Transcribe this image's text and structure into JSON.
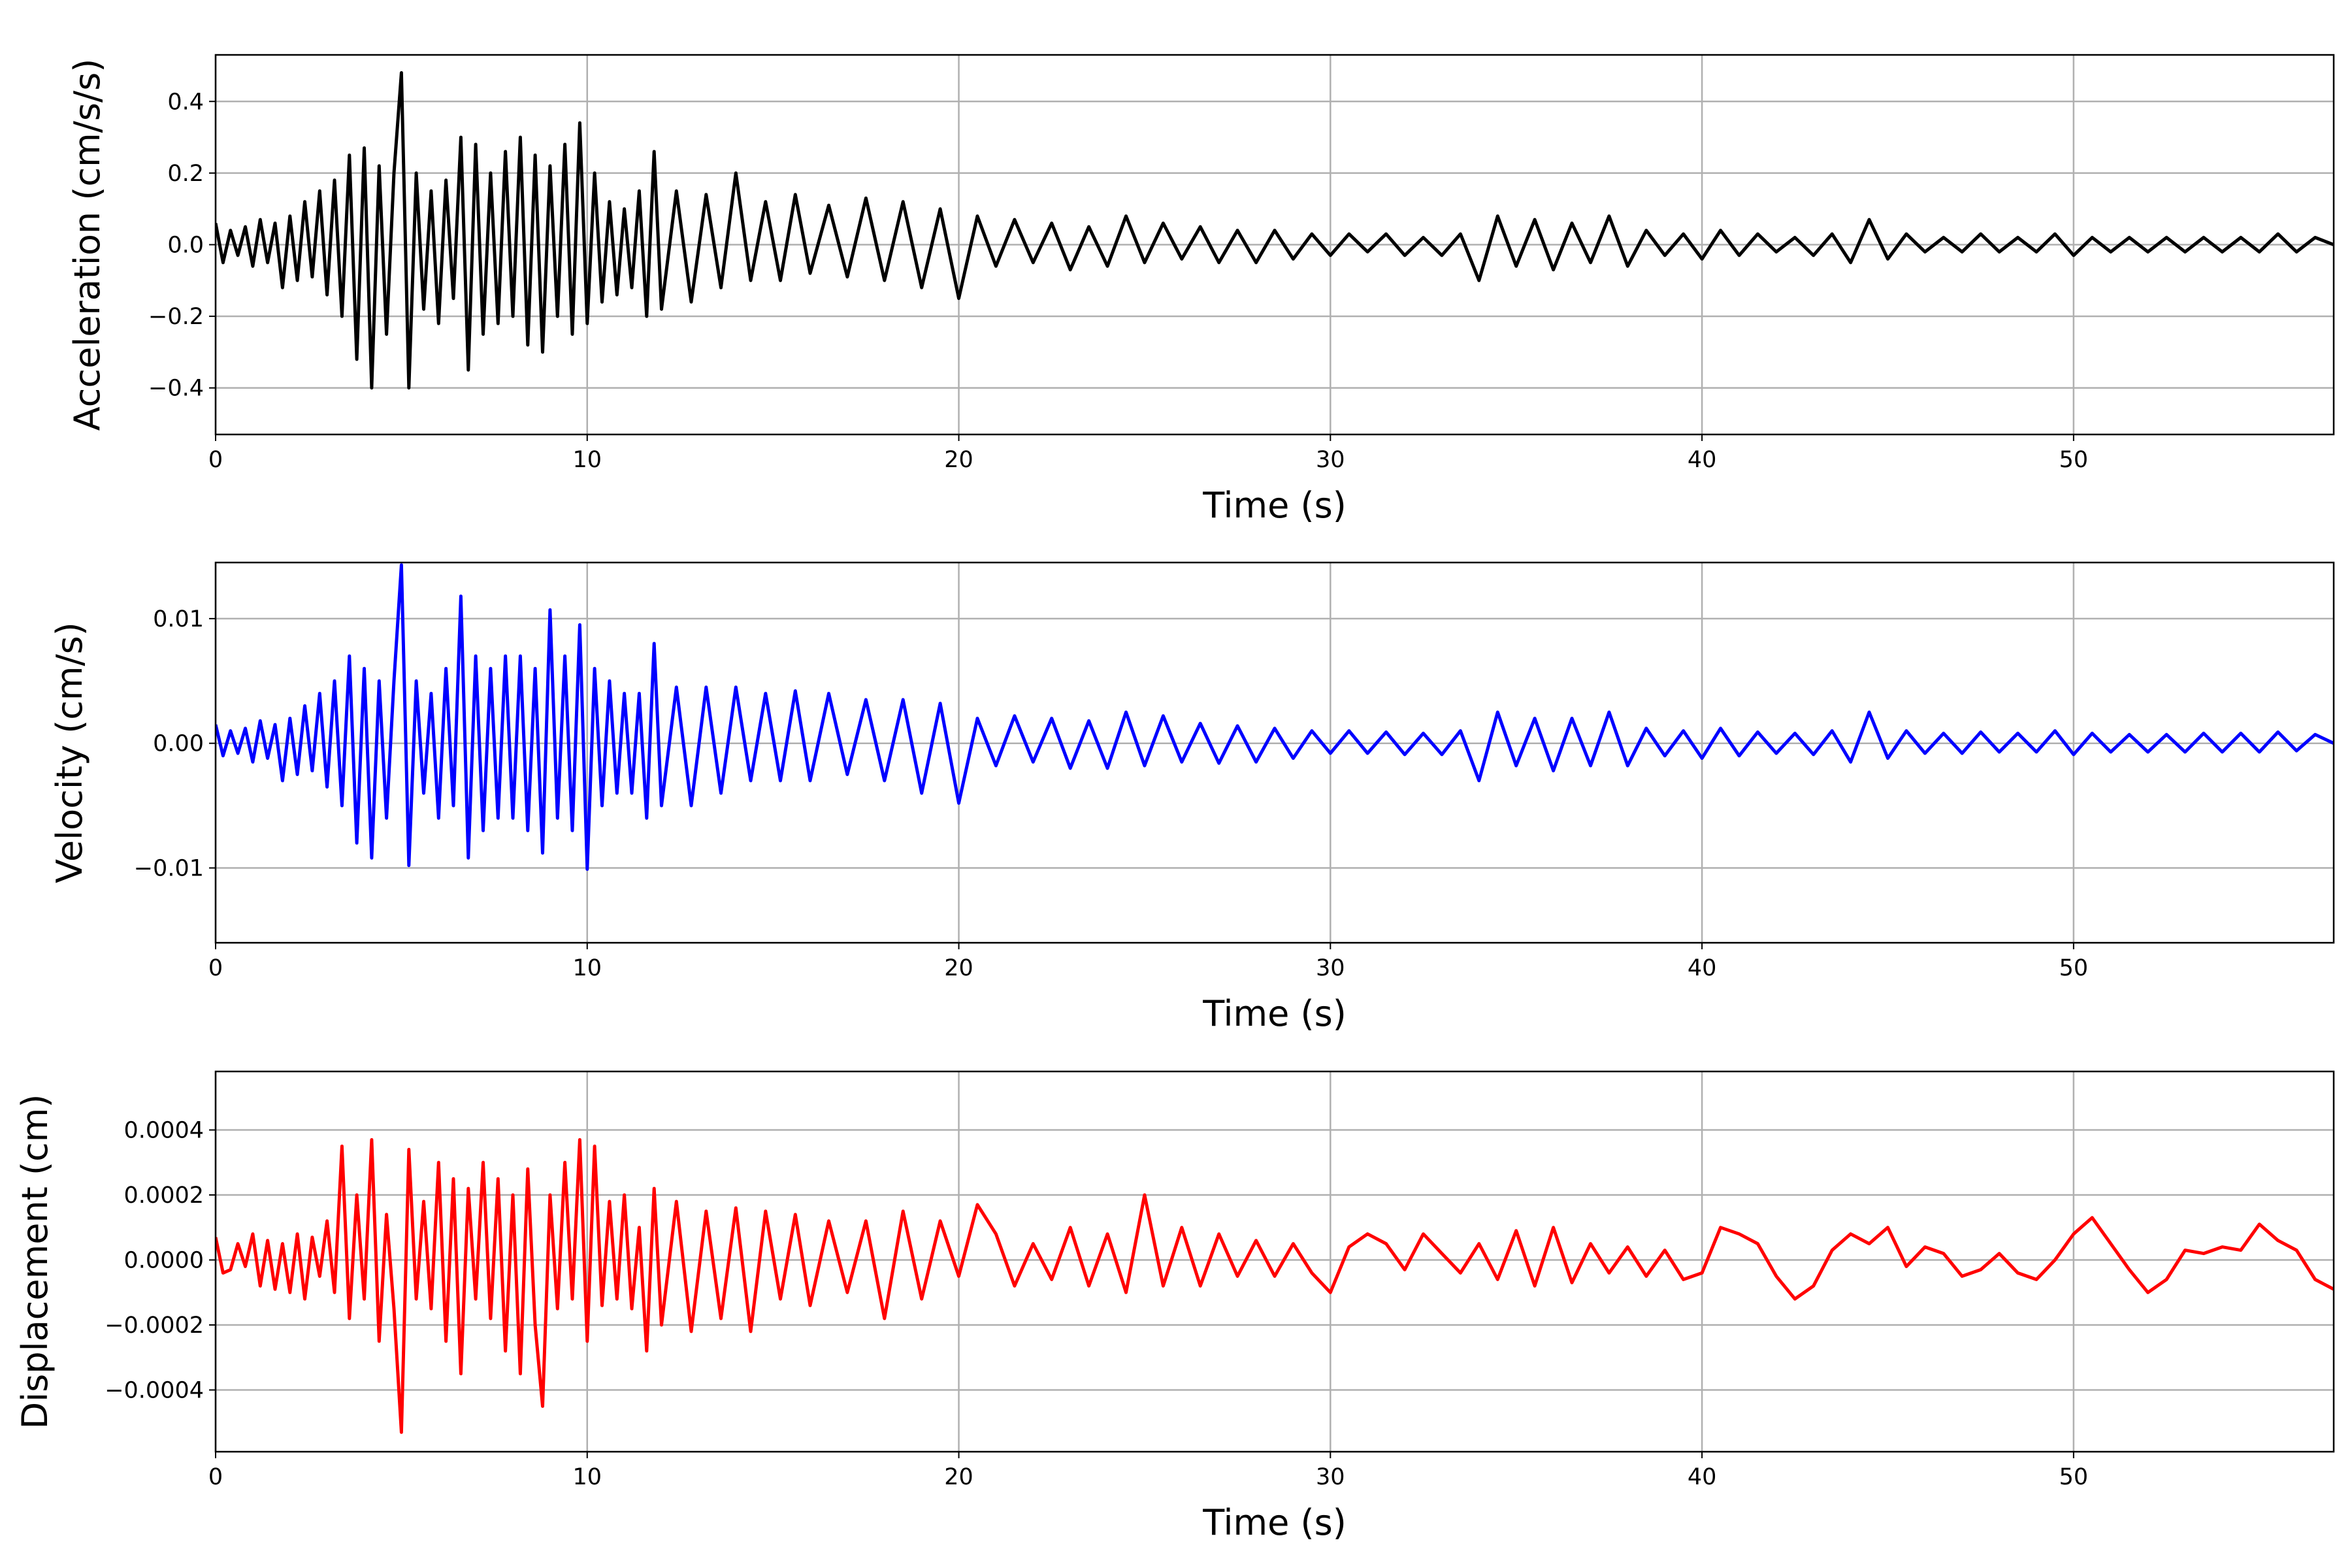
{
  "chart_data": [
    {
      "type": "line",
      "title": "",
      "xlabel": "Time (s)",
      "ylabel": "Acceleration (cm/s/s)",
      "xlim": [
        0,
        57
      ],
      "ylim": [
        -0.53,
        0.53
      ],
      "xticks": [
        0,
        10,
        20,
        30,
        40,
        50
      ],
      "xtick_labels": [
        "0",
        "10",
        "20",
        "30",
        "40",
        "50"
      ],
      "yticks": [
        -0.4,
        -0.2,
        0.0,
        0.2,
        0.4
      ],
      "ytick_labels": [
        "−0.4",
        "−0.2",
        "0.0",
        "0.2",
        "0.4"
      ],
      "grid": true,
      "color": "#000000",
      "series": [
        {
          "x": [
            0,
            0.2,
            0.4,
            0.6,
            0.8,
            1.0,
            1.2,
            1.4,
            1.6,
            1.8,
            2.0,
            2.2,
            2.4,
            2.6,
            2.8,
            3.0,
            3.2,
            3.4,
            3.6,
            3.8,
            4.0,
            4.2,
            4.4,
            4.6,
            4.8,
            5.0,
            5.2,
            5.4,
            5.6,
            5.8,
            6.0,
            6.2,
            6.4,
            6.6,
            6.8,
            7.0,
            7.2,
            7.4,
            7.6,
            7.8,
            8.0,
            8.2,
            8.4,
            8.6,
            8.8,
            9.0,
            9.2,
            9.4,
            9.6,
            9.8,
            10.0,
            10.2,
            10.4,
            10.6,
            10.8,
            11.0,
            11.2,
            11.4,
            11.6,
            11.8,
            12.0,
            12.4,
            12.8,
            13.2,
            13.6,
            14.0,
            14.4,
            14.8,
            15.2,
            15.6,
            16.0,
            16.5,
            17.0,
            17.5,
            18.0,
            18.5,
            19.0,
            19.5,
            20.0,
            20.5,
            21.0,
            21.5,
            22.0,
            22.5,
            23.0,
            23.5,
            24.0,
            24.5,
            25.0,
            25.5,
            26.0,
            26.5,
            27.0,
            27.5,
            28.0,
            28.5,
            29.0,
            29.5,
            30.0,
            30.5,
            31.0,
            31.5,
            32.0,
            32.5,
            33.0,
            33.5,
            34.0,
            34.5,
            35.0,
            35.5,
            36.0,
            36.5,
            37.0,
            37.5,
            38.0,
            38.5,
            39.0,
            39.5,
            40.0,
            40.5,
            41.0,
            41.5,
            42.0,
            42.5,
            43.0,
            43.5,
            44.0,
            44.5,
            45.0,
            45.5,
            46.0,
            46.5,
            47.0,
            47.5,
            48.0,
            48.5,
            49.0,
            49.5,
            50.0,
            50.5,
            51.0,
            51.5,
            52.0,
            52.5,
            53.0,
            53.5,
            54.0,
            54.5,
            55.0,
            55.5,
            56.0,
            56.5,
            57.0
          ],
          "y": [
            0.06,
            -0.05,
            0.04,
            -0.03,
            0.05,
            -0.06,
            0.07,
            -0.05,
            0.06,
            -0.12,
            0.08,
            -0.1,
            0.12,
            -0.09,
            0.15,
            -0.14,
            0.18,
            -0.2,
            0.25,
            -0.32,
            0.27,
            -0.4,
            0.22,
            -0.25,
            0.2,
            0.48,
            -0.4,
            0.2,
            -0.18,
            0.15,
            -0.22,
            0.18,
            -0.15,
            0.3,
            -0.35,
            0.28,
            -0.25,
            0.2,
            -0.22,
            0.26,
            -0.2,
            0.3,
            -0.28,
            0.25,
            -0.3,
            0.22,
            -0.2,
            0.28,
            -0.25,
            0.34,
            -0.22,
            0.2,
            -0.16,
            0.12,
            -0.14,
            0.1,
            -0.12,
            0.15,
            -0.2,
            0.26,
            -0.18,
            0.15,
            -0.16,
            0.14,
            -0.12,
            0.2,
            -0.1,
            0.12,
            -0.1,
            0.14,
            -0.08,
            0.11,
            -0.09,
            0.13,
            -0.1,
            0.12,
            -0.12,
            0.1,
            -0.15,
            0.08,
            -0.06,
            0.07,
            -0.05,
            0.06,
            -0.07,
            0.05,
            -0.06,
            0.08,
            -0.05,
            0.06,
            -0.04,
            0.05,
            -0.05,
            0.04,
            -0.05,
            0.04,
            -0.04,
            0.03,
            -0.03,
            0.03,
            -0.02,
            0.03,
            -0.03,
            0.02,
            -0.03,
            0.03,
            -0.1,
            0.08,
            -0.06,
            0.07,
            -0.07,
            0.06,
            -0.05,
            0.08,
            -0.06,
            0.04,
            -0.03,
            0.03,
            -0.04,
            0.04,
            -0.03,
            0.03,
            -0.02,
            0.02,
            -0.03,
            0.03,
            -0.05,
            0.07,
            -0.04,
            0.03,
            -0.02,
            0.02,
            -0.02,
            0.03,
            -0.02,
            0.02,
            -0.02,
            0.03,
            -0.03,
            0.02,
            -0.02,
            0.02,
            -0.02,
            0.02,
            -0.02,
            0.02,
            -0.02,
            0.02,
            -0.02,
            0.03,
            -0.02,
            0.02,
            0.0
          ]
        }
      ]
    },
    {
      "type": "line",
      "title": "",
      "xlabel": "Time (s)",
      "ylabel": "Velocity (cm/s)",
      "xlim": [
        0,
        57
      ],
      "ylim": [
        -0.016,
        0.0145
      ],
      "xticks": [
        0,
        10,
        20,
        30,
        40,
        50
      ],
      "xtick_labels": [
        "0",
        "10",
        "20",
        "30",
        "40",
        "50"
      ],
      "yticks": [
        -0.01,
        0.0,
        0.01
      ],
      "ytick_labels": [
        "−0.01",
        "0.00",
        "0.01"
      ],
      "grid": true,
      "color": "#0000ff",
      "series": [
        {
          "x": [
            0,
            0.2,
            0.4,
            0.6,
            0.8,
            1.0,
            1.2,
            1.4,
            1.6,
            1.8,
            2.0,
            2.2,
            2.4,
            2.6,
            2.8,
            3.0,
            3.2,
            3.4,
            3.6,
            3.8,
            4.0,
            4.2,
            4.4,
            4.6,
            4.8,
            5.0,
            5.2,
            5.4,
            5.6,
            5.8,
            6.0,
            6.2,
            6.4,
            6.6,
            6.8,
            7.0,
            7.2,
            7.4,
            7.6,
            7.8,
            8.0,
            8.2,
            8.4,
            8.6,
            8.8,
            9.0,
            9.2,
            9.4,
            9.6,
            9.8,
            10.0,
            10.2,
            10.4,
            10.6,
            10.8,
            11.0,
            11.2,
            11.4,
            11.6,
            11.8,
            12.0,
            12.4,
            12.8,
            13.2,
            13.6,
            14.0,
            14.4,
            14.8,
            15.2,
            15.6,
            16.0,
            16.5,
            17.0,
            17.5,
            18.0,
            18.5,
            19.0,
            19.5,
            20.0,
            20.5,
            21.0,
            21.5,
            22.0,
            22.5,
            23.0,
            23.5,
            24.0,
            24.5,
            25.0,
            25.5,
            26.0,
            26.5,
            27.0,
            27.5,
            28.0,
            28.5,
            29.0,
            29.5,
            30.0,
            30.5,
            31.0,
            31.5,
            32.0,
            32.5,
            33.0,
            33.5,
            34.0,
            34.5,
            35.0,
            35.5,
            36.0,
            36.5,
            37.0,
            37.5,
            38.0,
            38.5,
            39.0,
            39.5,
            40.0,
            40.5,
            41.0,
            41.5,
            42.0,
            42.5,
            43.0,
            43.5,
            44.0,
            44.5,
            45.0,
            45.5,
            46.0,
            46.5,
            47.0,
            47.5,
            48.0,
            48.5,
            49.0,
            49.5,
            50.0,
            50.5,
            51.0,
            51.5,
            52.0,
            52.5,
            53.0,
            53.5,
            54.0,
            54.5,
            55.0,
            55.5,
            56.0,
            56.5,
            57.0
          ],
          "y": [
            0.0015,
            -0.001,
            0.001,
            -0.0008,
            0.0012,
            -0.0015,
            0.0018,
            -0.0012,
            0.0015,
            -0.003,
            0.002,
            -0.0025,
            0.003,
            -0.0022,
            0.004,
            -0.0035,
            0.005,
            -0.005,
            0.007,
            -0.008,
            0.006,
            -0.0092,
            0.005,
            -0.006,
            0.005,
            0.0143,
            -0.0098,
            0.005,
            -0.004,
            0.004,
            -0.006,
            0.006,
            -0.005,
            0.0118,
            -0.0092,
            0.007,
            -0.007,
            0.006,
            -0.006,
            0.007,
            -0.006,
            0.007,
            -0.007,
            0.006,
            -0.0088,
            0.0107,
            -0.006,
            0.007,
            -0.007,
            0.0095,
            -0.0101,
            0.006,
            -0.005,
            0.005,
            -0.004,
            0.004,
            -0.004,
            0.004,
            -0.006,
            0.008,
            -0.005,
            0.0045,
            -0.005,
            0.0045,
            -0.004,
            0.0045,
            -0.003,
            0.004,
            -0.003,
            0.0042,
            -0.003,
            0.004,
            -0.0025,
            0.0035,
            -0.003,
            0.0035,
            -0.004,
            0.0032,
            -0.0048,
            0.002,
            -0.0018,
            0.0022,
            -0.0015,
            0.002,
            -0.002,
            0.0018,
            -0.002,
            0.0025,
            -0.0018,
            0.0022,
            -0.0015,
            0.0016,
            -0.0016,
            0.0014,
            -0.0015,
            0.0012,
            -0.0012,
            0.001,
            -0.0008,
            0.001,
            -0.0008,
            0.0009,
            -0.0009,
            0.0008,
            -0.0009,
            0.001,
            -0.003,
            0.0025,
            -0.0018,
            0.002,
            -0.0022,
            0.002,
            -0.0018,
            0.0025,
            -0.0018,
            0.0012,
            -0.001,
            0.001,
            -0.0012,
            0.0012,
            -0.001,
            0.0009,
            -0.0008,
            0.0008,
            -0.0009,
            0.001,
            -0.0015,
            0.0025,
            -0.0012,
            0.001,
            -0.0008,
            0.0008,
            -0.0008,
            0.0009,
            -0.0007,
            0.0008,
            -0.0007,
            0.001,
            -0.0009,
            0.0008,
            -0.0007,
            0.0007,
            -0.0007,
            0.0007,
            -0.0007,
            0.0008,
            -0.0007,
            0.0008,
            -0.0007,
            0.0009,
            -0.0006,
            0.0007,
            0.0
          ]
        }
      ]
    },
    {
      "type": "line",
      "title": "",
      "xlabel": "Time (s)",
      "ylabel": "Displacement (cm)",
      "xlim": [
        0,
        57
      ],
      "ylim": [
        -0.00059,
        0.00058
      ],
      "xticks": [
        0,
        10,
        20,
        30,
        40,
        50
      ],
      "xtick_labels": [
        "0",
        "10",
        "20",
        "30",
        "40",
        "50"
      ],
      "yticks": [
        -0.0004,
        -0.0002,
        0.0,
        0.0002,
        0.0004
      ],
      "ytick_labels": [
        "−0.0004",
        "−0.0002",
        "0.0000",
        "0.0002",
        "0.0004"
      ],
      "grid": true,
      "color": "#ff0000",
      "series": [
        {
          "x": [
            0,
            0.2,
            0.4,
            0.6,
            0.8,
            1.0,
            1.2,
            1.4,
            1.6,
            1.8,
            2.0,
            2.2,
            2.4,
            2.6,
            2.8,
            3.0,
            3.2,
            3.4,
            3.6,
            3.8,
            4.0,
            4.2,
            4.4,
            4.6,
            4.8,
            5.0,
            5.2,
            5.4,
            5.6,
            5.8,
            6.0,
            6.2,
            6.4,
            6.6,
            6.8,
            7.0,
            7.2,
            7.4,
            7.6,
            7.8,
            8.0,
            8.2,
            8.4,
            8.6,
            8.8,
            9.0,
            9.2,
            9.4,
            9.6,
            9.8,
            10.0,
            10.2,
            10.4,
            10.6,
            10.8,
            11.0,
            11.2,
            11.4,
            11.6,
            11.8,
            12.0,
            12.4,
            12.8,
            13.2,
            13.6,
            14.0,
            14.4,
            14.8,
            15.2,
            15.6,
            16.0,
            16.5,
            17.0,
            17.5,
            18.0,
            18.5,
            19.0,
            19.5,
            20.0,
            20.5,
            21.0,
            21.5,
            22.0,
            22.5,
            23.0,
            23.5,
            24.0,
            24.5,
            25.0,
            25.5,
            26.0,
            26.5,
            27.0,
            27.5,
            28.0,
            28.5,
            29.0,
            29.5,
            30.0,
            30.5,
            31.0,
            31.5,
            32.0,
            32.5,
            33.0,
            33.5,
            34.0,
            34.5,
            35.0,
            35.5,
            36.0,
            36.5,
            37.0,
            37.5,
            38.0,
            38.5,
            39.0,
            39.5,
            40.0,
            40.5,
            41.0,
            41.5,
            42.0,
            42.5,
            43.0,
            43.5,
            44.0,
            44.5,
            45.0,
            45.5,
            46.0,
            46.5,
            47.0,
            47.5,
            48.0,
            48.5,
            49.0,
            49.5,
            50.0,
            50.5,
            51.0,
            51.5,
            52.0,
            52.5,
            53.0,
            53.5,
            54.0,
            54.5,
            55.0,
            55.5,
            56.0,
            56.5,
            57.0
          ],
          "y": [
            7e-05,
            -4e-05,
            -3e-05,
            5e-05,
            -2e-05,
            8e-05,
            -8e-05,
            6e-05,
            -9e-05,
            5e-05,
            -0.0001,
            8e-05,
            -0.00012,
            7e-05,
            -5e-05,
            0.00012,
            -0.0001,
            0.00035,
            -0.00018,
            0.0002,
            -0.00012,
            0.00037,
            -0.00025,
            0.00014,
            -0.00015,
            -0.00053,
            0.00034,
            -0.00012,
            0.00018,
            -0.00015,
            0.0003,
            -0.00025,
            0.00025,
            -0.00035,
            0.00022,
            -0.00012,
            0.0003,
            -0.00018,
            0.00025,
            -0.00028,
            0.0002,
            -0.00035,
            0.00028,
            -0.0002,
            -0.00045,
            0.0002,
            -0.00015,
            0.0003,
            -0.00012,
            0.00037,
            -0.00025,
            0.00035,
            -0.00014,
            0.00018,
            -0.00012,
            0.0002,
            -0.00015,
            0.0001,
            -0.00028,
            0.00022,
            -0.0002,
            0.00018,
            -0.00022,
            0.00015,
            -0.00018,
            0.00016,
            -0.00022,
            0.00015,
            -0.00012,
            0.00014,
            -0.00014,
            0.00012,
            -0.0001,
            0.00012,
            -0.00018,
            0.00015,
            -0.00012,
            0.00012,
            -5e-05,
            0.00017,
            8e-05,
            -8e-05,
            5e-05,
            -6e-05,
            0.0001,
            -8e-05,
            8e-05,
            -0.0001,
            0.0002,
            -8e-05,
            0.0001,
            -8e-05,
            8e-05,
            -5e-05,
            6e-05,
            -5e-05,
            5e-05,
            -4e-05,
            -0.0001,
            4e-05,
            8e-05,
            5e-05,
            -3e-05,
            8e-05,
            2e-05,
            -4e-05,
            5e-05,
            -6e-05,
            9e-05,
            -8e-05,
            0.0001,
            -7e-05,
            5e-05,
            -4e-05,
            4e-05,
            -5e-05,
            3e-05,
            -6e-05,
            -4e-05,
            0.0001,
            8e-05,
            5e-05,
            -5e-05,
            -0.00012,
            -8e-05,
            3e-05,
            8e-05,
            5e-05,
            0.0001,
            -2e-05,
            4e-05,
            2e-05,
            -5e-05,
            -3e-05,
            2e-05,
            -4e-05,
            -6e-05,
            0.0,
            8e-05,
            0.00013,
            5e-05,
            -3e-05,
            -0.0001,
            -6e-05,
            3e-05,
            2e-05,
            4e-05,
            3e-05,
            0.00011,
            6e-05,
            3e-05,
            -6e-05,
            -9e-05
          ]
        }
      ]
    }
  ]
}
